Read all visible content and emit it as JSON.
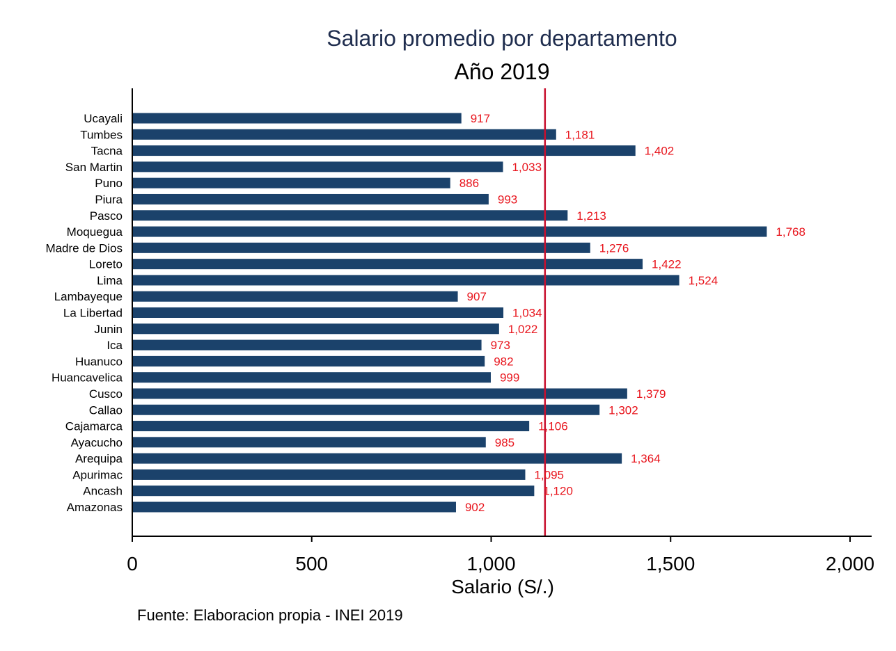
{
  "chart_data": {
    "type": "bar",
    "orientation": "horizontal",
    "title": "Salario promedio por departamento",
    "subtitle": "Año 2019",
    "xlabel": "Salario (S/.)",
    "ylabel": "",
    "note": "Fuente: Elaboracion propia - INEI 2019",
    "xlim": [
      0,
      2000
    ],
    "xticks": [
      0,
      500,
      1000,
      1500,
      2000
    ],
    "xtick_labels": [
      "0",
      "500",
      "1,000",
      "1,500",
      "2,000"
    ],
    "reference_line": {
      "value": 1150
    },
    "categories": [
      "Ucayali",
      "Tumbes",
      "Tacna",
      "San Martin",
      "Puno",
      "Piura",
      "Pasco",
      "Moquegua",
      "Madre de Dios",
      "Loreto",
      "Lima",
      "Lambayeque",
      "La Libertad",
      "Junin",
      "Ica",
      "Huanuco",
      "Huancavelica",
      "Cusco",
      "Callao",
      "Cajamarca",
      "Ayacucho",
      "Arequipa",
      "Apurimac",
      "Ancash",
      "Amazonas"
    ],
    "values": [
      917,
      1181,
      1402,
      1033,
      886,
      993,
      1213,
      1768,
      1276,
      1422,
      1524,
      907,
      1034,
      1022,
      973,
      982,
      999,
      1379,
      1302,
      1106,
      985,
      1364,
      1095,
      1120,
      902
    ],
    "value_labels": [
      "917",
      "1,181",
      "1,402",
      "1,033",
      "886",
      "993",
      "1,213",
      "1,768",
      "1,276",
      "1,422",
      "1,524",
      "907",
      "1,034",
      "1,022",
      "973",
      "982",
      "999",
      "1,379",
      "1,302",
      "1,106",
      "985",
      "1,364",
      "1,095",
      "1,120",
      "902"
    ],
    "colors": {
      "bar": "#1b426b",
      "value_label": "#e8141c",
      "reference_line": "#c8102e",
      "axis": "#000000",
      "title": "#1f2d4e"
    }
  }
}
